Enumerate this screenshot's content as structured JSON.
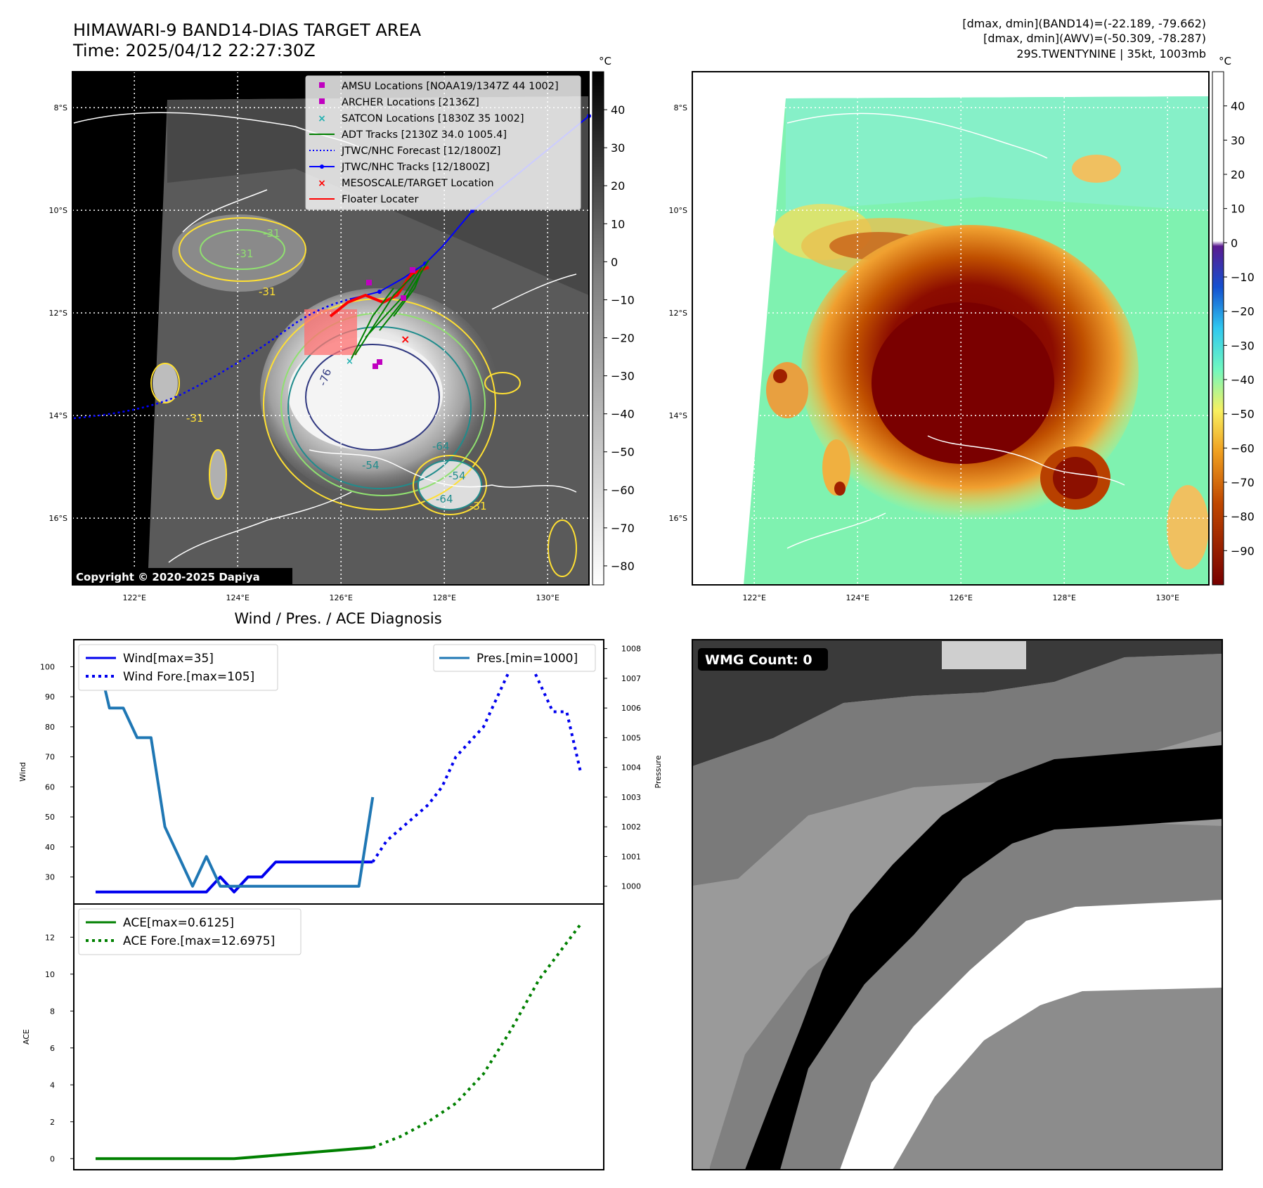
{
  "header": {
    "title_line1": "HIMAWARI-9 BAND14-DIAS TARGET AREA",
    "title_line2": "Time: 2025/04/12 22:27:30Z",
    "info_line1": "[dmax, dmin](BAND14)=(-22.189, -79.662)",
    "info_line2": "[dmax, dmin](AWV)=(-50.309, -78.287)",
    "info_line3": "29S.TWENTYNINE | 35kt, 1003mb",
    "copyright": "Copyright © 2020-2025 Dapiya",
    "unit_left": "°C",
    "unit_right": "°C"
  },
  "map_axes": {
    "lat_labels": [
      "8°S",
      "10°S",
      "12°S",
      "14°S",
      "16°S"
    ],
    "lat_values": [
      8,
      10,
      12,
      14,
      16
    ],
    "lon_labels": [
      "122°E",
      "124°E",
      "126°E",
      "128°E",
      "130°E"
    ],
    "lon_values": [
      122,
      124,
      126,
      128,
      130
    ],
    "lon_range": [
      120.8,
      130.8
    ],
    "lat_range": [
      7.3,
      17.3
    ]
  },
  "map_legend": [
    {
      "label": "AMSU Locations [NOAA19/1347Z 44 1002]",
      "marker": "square",
      "color": "#c000c0"
    },
    {
      "label": "ARCHER Locations [2136Z]",
      "marker": "square",
      "color": "#c000c0"
    },
    {
      "label": "SATCON Locations [1830Z 35 1002]",
      "marker": "x",
      "color": "#20b0b0"
    },
    {
      "label": "ADT Tracks [2130Z 34.0 1005.4]",
      "marker": "line",
      "color": "#008000"
    },
    {
      "label": "JTWC/NHC Forecast [12/1800Z]",
      "marker": "dotted",
      "color": "#0000ff"
    },
    {
      "label": "JTWC/NHC Tracks [12/1800Z]",
      "marker": "line-dot",
      "color": "#0000ff"
    },
    {
      "label": "MESOSCALE/TARGET Location",
      "marker": "x",
      "color": "#ff0000"
    },
    {
      "label": "Floater Locater",
      "marker": "line",
      "color": "#ff0000"
    }
  ],
  "contour_labels": [
    "-31",
    "-31",
    "-31",
    "-31",
    "-54",
    "-64",
    "-64",
    "-54",
    "-76",
    "-31"
  ],
  "colorbar_left": {
    "ticks": [
      "40",
      "30",
      "20",
      "10",
      "0",
      "−10",
      "−20",
      "−30",
      "−40",
      "−50",
      "−60",
      "−70",
      "−80"
    ],
    "tick_values": [
      40,
      30,
      20,
      10,
      0,
      -10,
      -20,
      -30,
      -40,
      -50,
      -60,
      -70,
      -80
    ],
    "range": [
      -85,
      50
    ]
  },
  "colorbar_right": {
    "ticks": [
      "40",
      "30",
      "20",
      "10",
      "0",
      "−10",
      "−20",
      "−30",
      "−40",
      "−50",
      "−60",
      "−70",
      "−80",
      "−90"
    ],
    "tick_values": [
      40,
      30,
      20,
      10,
      0,
      -10,
      -20,
      -30,
      -40,
      -50,
      -60,
      -70,
      -80,
      -90
    ],
    "range": [
      -100,
      50
    ]
  },
  "wmg": {
    "label": "WMG Count: 0"
  },
  "chart_data": [
    {
      "type": "line",
      "title": "Wind / Pres. / ACE Diagnosis",
      "ylabel": "Wind",
      "ylabel_right": "Pressure",
      "ylim": [
        21,
        109
      ],
      "ylim_right": [
        999.4,
        1008.3
      ],
      "yticks": [
        30,
        40,
        50,
        60,
        70,
        80,
        90,
        100
      ],
      "yticks_right": [
        1000,
        1001,
        1002,
        1003,
        1004,
        1005,
        1006,
        1007,
        1008
      ],
      "x_index_max": 35,
      "series": [
        {
          "name": "Wind[max=35]",
          "color": "#0000ee",
          "style": "solid",
          "x": [
            0,
            1,
            2,
            3,
            4,
            5,
            6,
            7,
            8,
            9,
            10,
            11,
            12,
            13,
            14,
            15,
            16,
            17,
            18,
            19,
            20
          ],
          "values": [
            25,
            25,
            25,
            25,
            25,
            25,
            25,
            25,
            25,
            30,
            25,
            30,
            30,
            35,
            35,
            35,
            35,
            35,
            35,
            35,
            35
          ]
        },
        {
          "name": "Wind Fore.[max=105]",
          "color": "#0000ee",
          "style": "dotted",
          "x": [
            20,
            21,
            22,
            23,
            24,
            25,
            26,
            27,
            28,
            29,
            30,
            31,
            32,
            33,
            34,
            35
          ],
          "values": [
            35,
            42,
            46,
            50,
            54,
            60,
            70,
            75,
            80,
            90,
            100,
            105,
            95,
            85,
            85,
            65
          ]
        },
        {
          "name": "Pres.[min=1000]",
          "color": "#1f77b4",
          "style": "solid",
          "axis": "right",
          "x": [
            0,
            1,
            2,
            3,
            4,
            5,
            6,
            7,
            8,
            9,
            10,
            11,
            12,
            13,
            14,
            15,
            16,
            17,
            18,
            19,
            20
          ],
          "values": [
            1008,
            1006,
            1006,
            1005,
            1005,
            1002,
            1001,
            1000,
            1001,
            1000,
            1000,
            1000,
            1000,
            1000,
            1000,
            1000,
            1000,
            1000,
            1000,
            1000,
            1003
          ]
        }
      ],
      "legend_left": [
        "Wind[max=35]",
        "Wind Fore.[max=105]"
      ],
      "legend_right": [
        "Pres.[min=1000]"
      ]
    },
    {
      "type": "line",
      "ylabel": "ACE",
      "ylim": [
        -0.6,
        13.8
      ],
      "yticks": [
        0,
        2,
        4,
        6,
        8,
        10,
        12
      ],
      "x_index_max": 35,
      "series": [
        {
          "name": "ACE[max=0.6125]",
          "color": "#008000",
          "style": "solid",
          "x": [
            0,
            10,
            20
          ],
          "values": [
            0,
            0,
            0.6125
          ]
        },
        {
          "name": "ACE Fore.[max=12.6975]",
          "color": "#008000",
          "style": "dotted",
          "x": [
            20,
            22,
            24,
            26,
            28,
            30,
            32,
            34,
            35
          ],
          "values": [
            0.6125,
            1.2,
            2,
            3,
            4.6,
            7,
            9.7,
            11.7,
            12.6975
          ]
        }
      ],
      "legend": [
        "ACE[max=0.6125]",
        "ACE Fore.[max=12.6975]"
      ]
    }
  ]
}
